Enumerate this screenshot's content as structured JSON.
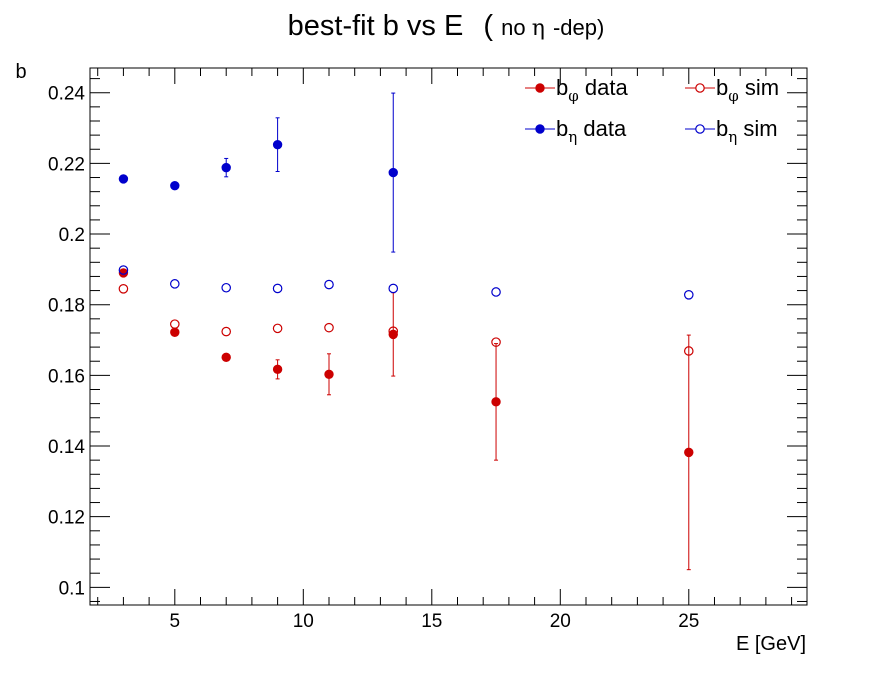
{
  "chart_data": {
    "type": "scatter",
    "title": {
      "main": "best-fit  b  vs  E",
      "paren_open": "(",
      "paren_prefix": "no ",
      "eta": "η",
      "paren_suffix": "-dep)"
    },
    "xlabel": "E  [GeV]",
    "ylabel": "b",
    "xlim": [
      1.7,
      29.6
    ],
    "ylim": [
      0.095,
      0.247
    ],
    "xticks": [
      5,
      10,
      15,
      20,
      25
    ],
    "xtick_labels": [
      "5",
      "10",
      "15",
      "20",
      "25"
    ],
    "yticks": [
      0.1,
      0.12,
      0.14,
      0.16,
      0.18,
      0.2,
      0.22,
      0.24
    ],
    "ytick_labels": [
      "0.1",
      "0.12",
      "0.14",
      "0.16",
      "0.18",
      "0.2",
      "0.22",
      "0.24"
    ],
    "grid": false,
    "legend_position": "top-right",
    "series": [
      {
        "key": "bphi_data",
        "legend_base": "b",
        "legend_sub": "φ",
        "legend_text": " data",
        "color": "#cc0000",
        "marker": "filled-circle",
        "points": [
          {
            "x": 3,
            "y": 0.189,
            "err": 0.0005
          },
          {
            "x": 5,
            "y": 0.1722,
            "err": 0.0008
          },
          {
            "x": 7,
            "y": 0.1651,
            "err": 0.0009
          },
          {
            "x": 9,
            "y": 0.1617,
            "err": 0.0027
          },
          {
            "x": 11,
            "y": 0.1603,
            "err": 0.0058
          },
          {
            "x": 13.5,
            "y": 0.1716,
            "err": 0.0118
          },
          {
            "x": 17.5,
            "y": 0.1525,
            "err": 0.0165
          },
          {
            "x": 25,
            "y": 0.1382,
            "err": 0.0332
          }
        ]
      },
      {
        "key": "bphi_sim",
        "legend_base": "b",
        "legend_sub": "φ",
        "legend_text": "  sim",
        "color": "#cc0000",
        "marker": "open-circle",
        "points": [
          {
            "x": 3,
            "y": 0.1845
          },
          {
            "x": 5,
            "y": 0.1745
          },
          {
            "x": 7,
            "y": 0.1724
          },
          {
            "x": 9,
            "y": 0.1733
          },
          {
            "x": 11,
            "y": 0.1735
          },
          {
            "x": 13.5,
            "y": 0.1725
          },
          {
            "x": 17.5,
            "y": 0.1694
          },
          {
            "x": 25,
            "y": 0.1669
          }
        ]
      },
      {
        "key": "beta_data",
        "legend_base": "b",
        "legend_sub": "η",
        "legend_text": " data",
        "color": "#0000cc",
        "marker": "filled-circle",
        "points": [
          {
            "x": 3,
            "y": 0.2156,
            "err": 0.0005
          },
          {
            "x": 5,
            "y": 0.2137,
            "err": 0.0008
          },
          {
            "x": 7,
            "y": 0.2188,
            "err": 0.0026
          },
          {
            "x": 9,
            "y": 0.2253,
            "err": 0.0076
          },
          {
            "x": 11,
            "y": null
          },
          {
            "x": 13.5,
            "y": 0.2174,
            "err": 0.0225
          }
        ]
      },
      {
        "key": "beta_sim",
        "legend_base": "b",
        "legend_sub": "η",
        "legend_text": "  sim",
        "color": "#0000cc",
        "marker": "open-circle",
        "points": [
          {
            "x": 3,
            "y": 0.1898
          },
          {
            "x": 5,
            "y": 0.1859
          },
          {
            "x": 7,
            "y": 0.1848
          },
          {
            "x": 9,
            "y": 0.1846
          },
          {
            "x": 11,
            "y": 0.1857
          },
          {
            "x": 13.5,
            "y": 0.1846
          },
          {
            "x": 17.5,
            "y": 0.1836
          },
          {
            "x": 25,
            "y": 0.1828
          }
        ]
      }
    ]
  }
}
